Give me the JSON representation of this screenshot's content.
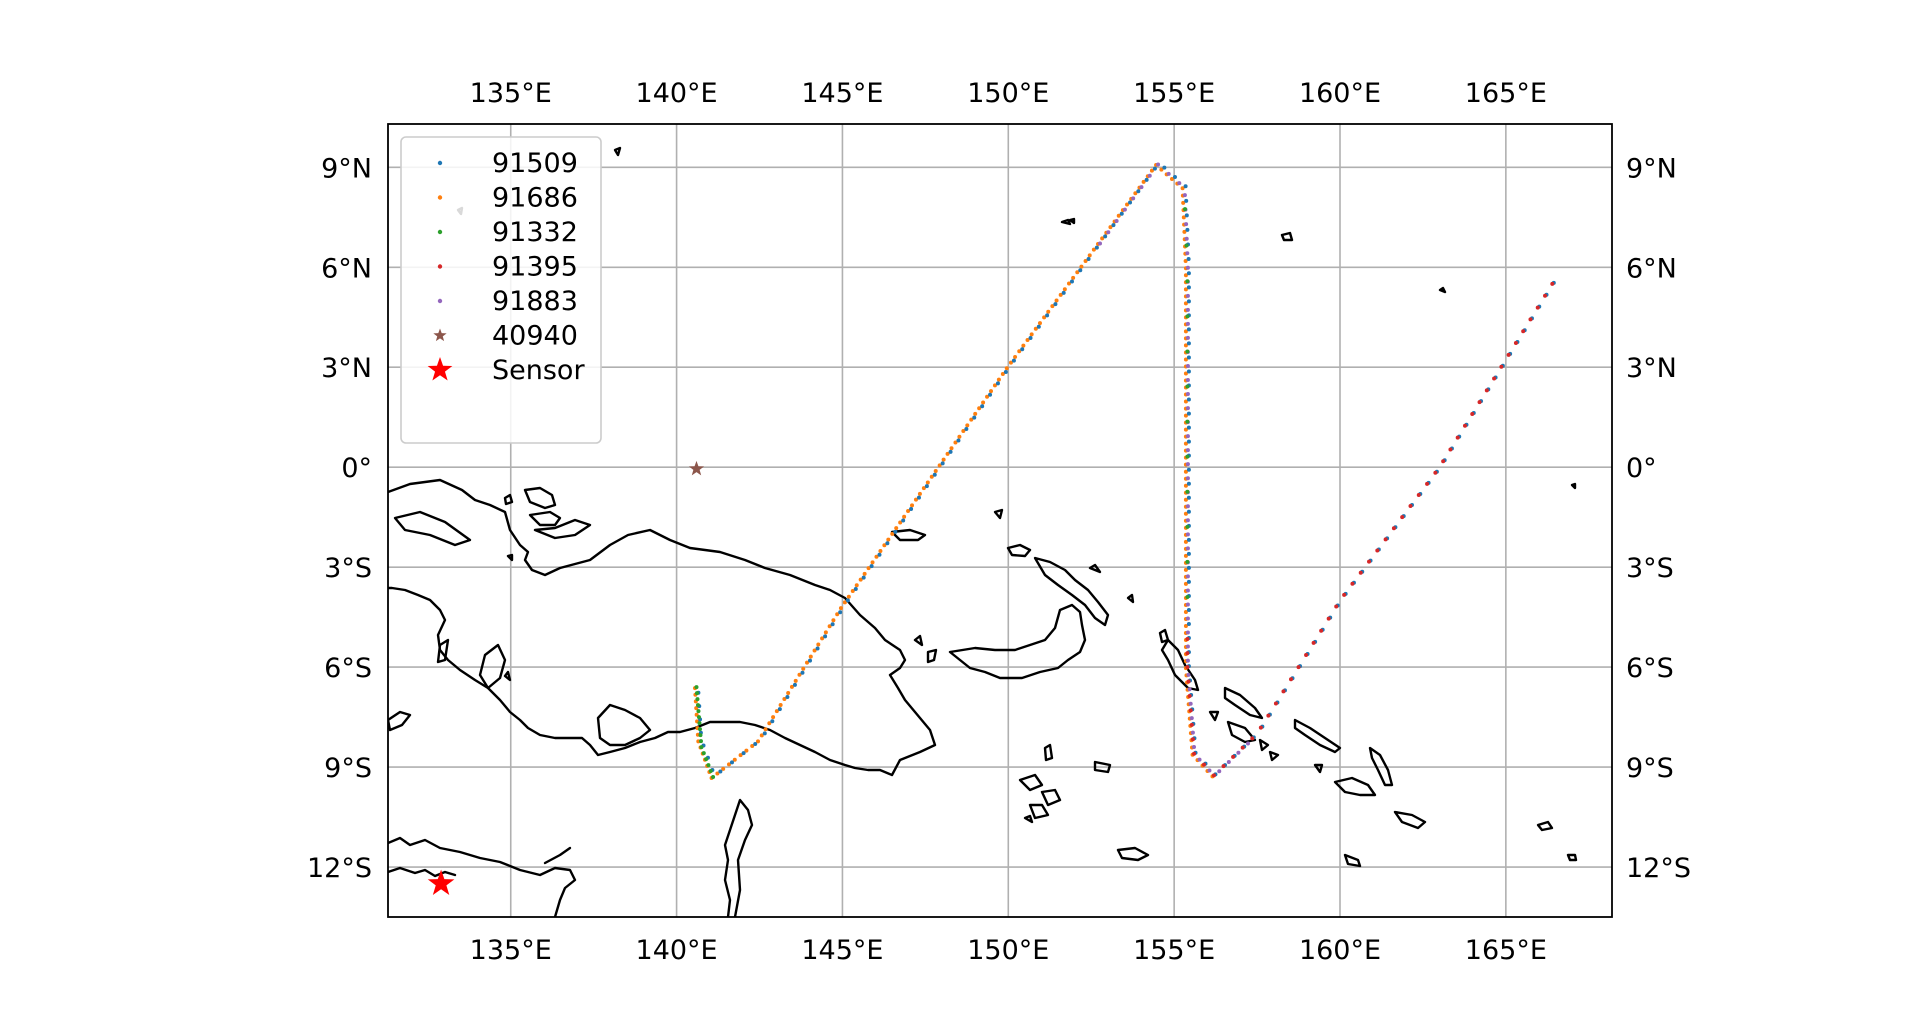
{
  "chart_data": {
    "type": "scatter",
    "projection": "PlateCarree",
    "xlim": [
      131.3,
      168.2
    ],
    "ylim": [
      -13.5,
      10.3
    ],
    "grid": true,
    "legend_position": "upper-left",
    "x_ticks": [
      {
        "value": 135,
        "label": "135°E"
      },
      {
        "value": 140,
        "label": "140°E"
      },
      {
        "value": 145,
        "label": "145°E"
      },
      {
        "value": 150,
        "label": "150°E"
      },
      {
        "value": 155,
        "label": "155°E"
      },
      {
        "value": 160,
        "label": "160°E"
      },
      {
        "value": 165,
        "label": "165°E"
      }
    ],
    "y_ticks": [
      {
        "value": 9,
        "label": "9°N"
      },
      {
        "value": 6,
        "label": "6°N"
      },
      {
        "value": 3,
        "label": "3°N"
      },
      {
        "value": 0,
        "label": "0°"
      },
      {
        "value": -3,
        "label": "3°S"
      },
      {
        "value": -6,
        "label": "6°S"
      },
      {
        "value": -9,
        "label": "9°S"
      },
      {
        "value": -12,
        "label": "12°S"
      }
    ],
    "legend": [
      {
        "label": "91509",
        "color": "#1f77b4",
        "marker": "dot"
      },
      {
        "label": "91686",
        "color": "#ff7f0e",
        "marker": "dot"
      },
      {
        "label": "91332",
        "color": "#2ca02c",
        "marker": "dot"
      },
      {
        "label": "91395",
        "color": "#d62728",
        "marker": "dot"
      },
      {
        "label": "91883",
        "color": "#9467bd",
        "marker": "dot"
      },
      {
        "label": "40940",
        "color": "#8c564b",
        "marker": "star-small"
      },
      {
        "label": "Sensor",
        "color": "#ff0000",
        "marker": "star-large"
      }
    ],
    "track_waypoints": {
      "west_arc": [
        [
          140.6,
          -6.6
        ],
        [
          140.7,
          -8.2
        ],
        [
          141.1,
          -9.3
        ],
        [
          142.5,
          -8.2
        ],
        [
          145.0,
          -4.2
        ],
        [
          150.0,
          3.0
        ],
        [
          154.5,
          9.1
        ],
        [
          155.3,
          8.4
        ],
        [
          155.4,
          6.0
        ],
        [
          155.4,
          -6.0
        ],
        [
          155.6,
          -8.6
        ],
        [
          156.2,
          -9.25
        ],
        [
          157.5,
          -8.0
        ],
        [
          160.0,
          -4.0
        ],
        [
          163.0,
          0.0
        ],
        [
          166.4,
          5.5
        ]
      ],
      "green_start": [
        [
          140.6,
          -6.6
        ],
        [
          140.75,
          -8.4
        ],
        [
          141.1,
          -9.3
        ]
      ]
    },
    "series": [
      {
        "name": "91509",
        "color": "#1f77b4",
        "segment": "full"
      },
      {
        "name": "91686",
        "color": "#ff7f0e",
        "segment": "west"
      },
      {
        "name": "91332",
        "color": "#2ca02c",
        "segment": "green"
      },
      {
        "name": "91395",
        "color": "#d62728",
        "segment": "east"
      },
      {
        "name": "91883",
        "color": "#9467bd",
        "segment": "apex"
      }
    ],
    "points": [
      {
        "name": "40940",
        "lon": 140.6,
        "lat": -0.05,
        "color": "#8c564b",
        "marker": "star-small"
      },
      {
        "name": "Sensor",
        "lon": 132.9,
        "lat": -12.5,
        "color": "#ff0000",
        "marker": "star-large"
      }
    ]
  }
}
